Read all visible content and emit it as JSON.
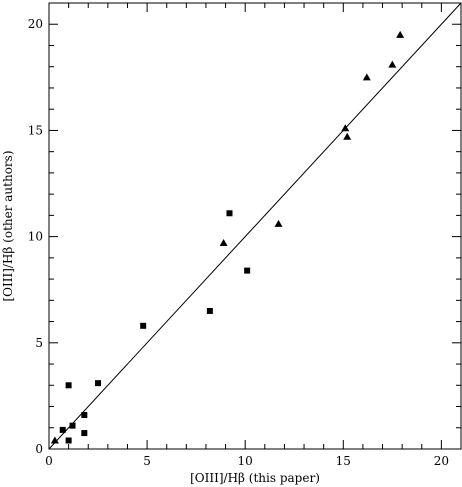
{
  "chart_data": {
    "type": "scatter",
    "title": "",
    "xlabel": "[OIII]/Hβ (this paper)",
    "ylabel": "[OIII]/Hβ (other authors)",
    "xlim": [
      0,
      21
    ],
    "ylim": [
      0,
      21
    ],
    "x_ticks": [
      0,
      5,
      10,
      15,
      20
    ],
    "y_ticks": [
      0,
      5,
      10,
      15,
      20
    ],
    "x_tick_labels": [
      "0",
      "5",
      "10",
      "15",
      "20"
    ],
    "y_tick_labels": [
      "0",
      "5",
      "10",
      "15",
      "20"
    ],
    "grid": false,
    "reference_line": {
      "type": "identity",
      "from": [
        0,
        0
      ],
      "to": [
        21,
        21
      ]
    },
    "series": [
      {
        "marker": "square",
        "points": [
          {
            "x": 0.7,
            "y": 0.9
          },
          {
            "x": 1.0,
            "y": 0.4
          },
          {
            "x": 1.0,
            "y": 3.0
          },
          {
            "x": 1.2,
            "y": 1.1
          },
          {
            "x": 1.8,
            "y": 1.6
          },
          {
            "x": 1.8,
            "y": 0.75
          },
          {
            "x": 2.5,
            "y": 3.1
          },
          {
            "x": 4.8,
            "y": 5.8
          },
          {
            "x": 8.2,
            "y": 6.5
          },
          {
            "x": 9.2,
            "y": 11.1
          },
          {
            "x": 10.1,
            "y": 8.4
          }
        ]
      },
      {
        "marker": "triangle",
        "points": [
          {
            "x": 0.3,
            "y": 0.4
          },
          {
            "x": 8.9,
            "y": 9.7
          },
          {
            "x": 11.7,
            "y": 10.6
          },
          {
            "x": 15.1,
            "y": 15.1
          },
          {
            "x": 15.2,
            "y": 14.7
          },
          {
            "x": 16.2,
            "y": 17.5
          },
          {
            "x": 17.5,
            "y": 18.1
          },
          {
            "x": 17.9,
            "y": 19.5
          }
        ]
      }
    ]
  }
}
